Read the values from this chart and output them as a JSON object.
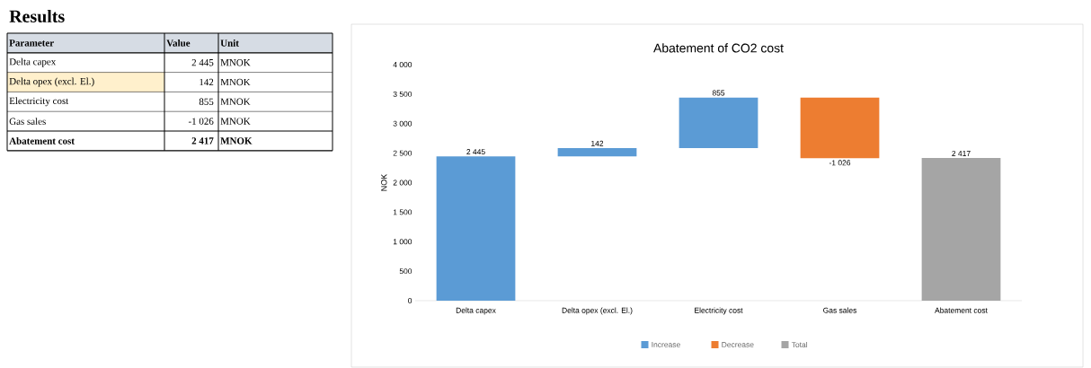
{
  "chart_data": [
    {
      "type": "other",
      "title": "Results",
      "annotations": [
        "Parameter",
        "Value",
        "Unit",
        "Delta capex",
        "2 445",
        "MNOK",
        "Delta opex (excl. El.)",
        "142",
        "MNOK",
        "Electricity cost",
        "855",
        "MNOK",
        "Gas sales",
        "-1 026",
        "MNOK",
        "Abatement cost",
        "2 417",
        "MNOK"
      ]
    },
    {
      "type": "bar",
      "title": "Abatement of CO2 cost",
      "ylabel": "NOK",
      "categories": [
        "Delta capex",
        "Delta opex (excl. El.)",
        "Electricity cost",
        "Gas sales",
        "Abatement cost"
      ],
      "series": [
        {
          "name": "Increase",
          "color": "#5b9bd5",
          "values": [
            2445,
            142,
            855,
            null,
            null
          ],
          "base": [
            0,
            2445,
            2587,
            null,
            null
          ],
          "value_labels": [
            "2 445",
            "142",
            "855",
            null,
            null
          ]
        },
        {
          "name": "Decrease",
          "color": "#ed7d31",
          "values": [
            null,
            null,
            null,
            -1026,
            null
          ],
          "base": [
            null,
            null,
            null,
            3442,
            null
          ],
          "value_labels": [
            null,
            null,
            null,
            "-1 026",
            null
          ]
        },
        {
          "name": "Total",
          "color": "#a5a5a5",
          "values": [
            null,
            null,
            null,
            null,
            2417
          ],
          "base": [
            null,
            null,
            null,
            null,
            0
          ],
          "value_labels": [
            null,
            null,
            null,
            null,
            "2 417"
          ]
        }
      ],
      "ylim": [
        0,
        4000
      ],
      "yticks": [
        0,
        {
          "value": 500,
          "label": "500"
        },
        {
          "value": 1000,
          "label": "1 000"
        },
        {
          "value": 1500,
          "label": "1 500"
        },
        {
          "value": 2000,
          "label": "2 000"
        },
        {
          "value": 2500,
          "label": "2 500"
        },
        {
          "value": 3000,
          "label": "3 000"
        },
        {
          "value": 3500,
          "label": "3 500"
        },
        {
          "value": 4000,
          "label": "4 000"
        }
      ],
      "legend": "bottom"
    }
  ]
}
